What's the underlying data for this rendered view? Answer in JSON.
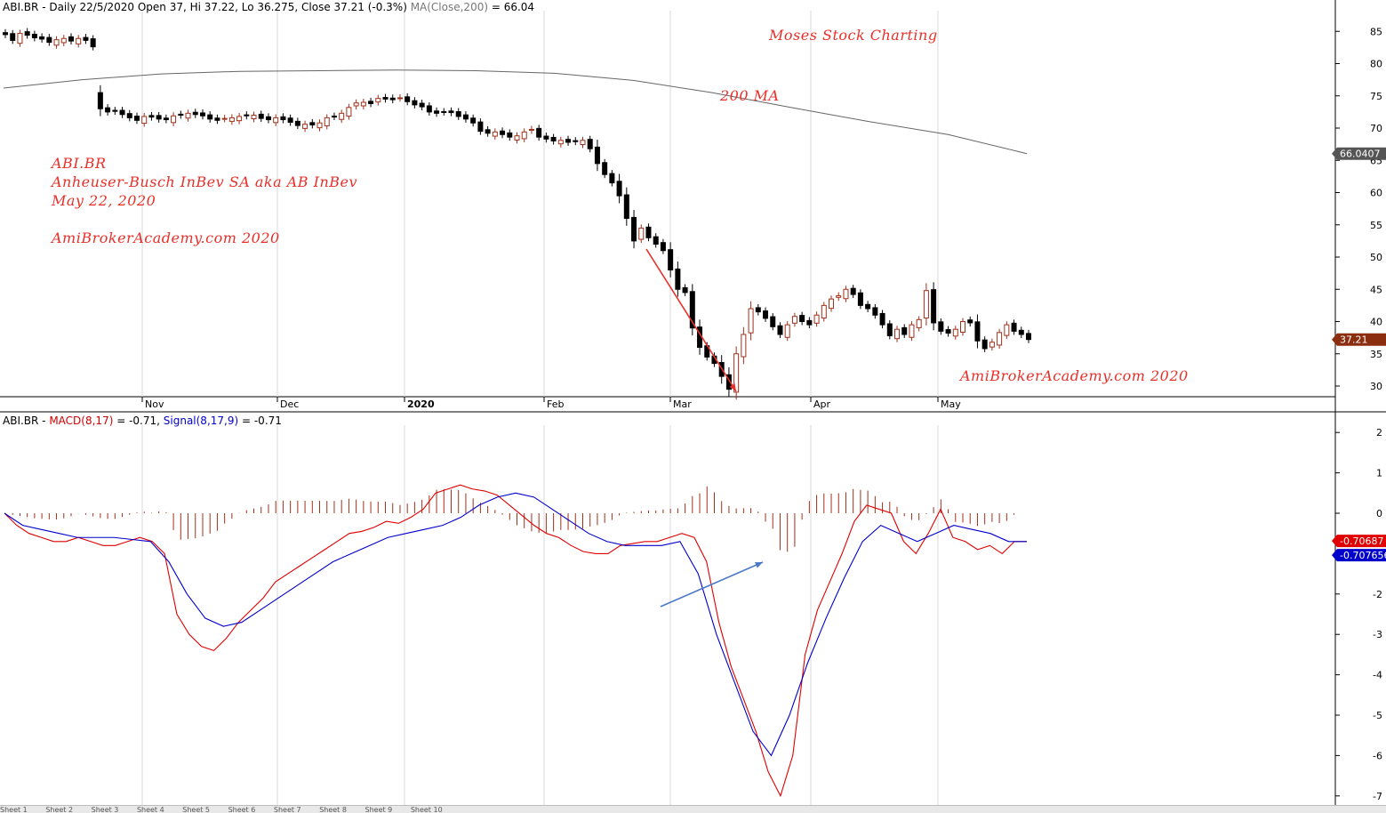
{
  "header": {
    "ticker": "ABI.BR",
    "ohlc": " - Daily 22/5/2020 Open 37, Hi 37.22, Lo 36.275, Close 37.21 (-0.3%) ",
    "ma_label": "MA(Close,200)",
    "ma_value": " = 66.04"
  },
  "macd_header": {
    "ticker": "ABI.BR - ",
    "macd_label": "MACD(8,17)",
    "macd_value": " = -0.71, ",
    "signal_label": "Signal(8,17,9)",
    "signal_value": " = -0.71"
  },
  "annotations": {
    "moses": "Moses Stock Charting",
    "ma200": "200 MA",
    "name1": "ABI.BR",
    "name2": "Anheuser-Busch InBev SA aka AB InBev",
    "date": "May 22, 2020",
    "site1": "AmiBrokerAcademy.com  2020",
    "site2": "AmiBrokerAcademy.com  2020"
  },
  "tabs": [
    "Sheet 1",
    "Sheet 2",
    "Sheet 3",
    "Sheet 4",
    "Sheet 5",
    "Sheet 6",
    "Sheet 7",
    "Sheet 8",
    "Sheet 9",
    "Sheet 10"
  ],
  "colors": {
    "macd": "#e00000",
    "signal": "#0000cc",
    "histogram": "#a0301a",
    "ma": "#666666",
    "arrow_price": "#e8302a",
    "arrow_macd": "#4a78c8",
    "last_price_bg": "#8b2e10"
  },
  "chart_data": [
    {
      "type": "candlestick",
      "title": "ABI.BR Daily",
      "ylim": [
        27,
        88
      ],
      "yticks": [
        30,
        35,
        40,
        45,
        50,
        55,
        60,
        65,
        70,
        75,
        80,
        85
      ],
      "xlabels": [
        "Nov",
        "Dec",
        "2020",
        "Feb",
        "Mar",
        "Apr",
        "May"
      ],
      "last_price_label": "37.21",
      "ma_label_box": "66.0407",
      "closes": [
        84.5,
        83.6,
        84.7,
        84.4,
        84.0,
        83.8,
        83.3,
        83.7,
        83.9,
        83.5,
        83.9,
        83.6,
        82.6,
        73.0,
        72.5,
        72.6,
        72.1,
        71.6,
        71.2,
        71.8,
        71.7,
        71.4,
        71.3,
        71.9,
        72.0,
        72.3,
        72.1,
        71.9,
        71.4,
        71.2,
        71.5,
        71.6,
        71.8,
        71.9,
        72.0,
        71.5,
        71.3,
        71.6,
        71.3,
        70.9,
        70.4,
        70.6,
        70.5,
        70.8,
        71.6,
        71.8,
        72.3,
        73.2,
        73.9,
        74.0,
        73.8,
        74.6,
        74.5,
        74.4,
        74.7,
        74.1,
        73.6,
        73.3,
        72.5,
        72.3,
        72.5,
        72.4,
        71.8,
        71.4,
        70.8,
        69.5,
        69.2,
        69.4,
        69.0,
        68.6,
        68.8,
        69.4,
        69.8,
        68.6,
        68.3,
        68.0,
        68.1,
        67.8,
        67.9,
        68.1,
        66.8,
        64.5,
        62.8,
        61.5,
        59.5,
        56.0,
        52.5,
        54.5,
        53.0,
        52.0,
        51.0,
        48.0,
        45.0,
        44.5,
        39.0,
        36.0,
        34.5,
        33.5,
        31.5,
        29.5,
        35.0,
        38.0,
        42.0,
        41.5,
        40.5,
        39.2,
        38.0,
        39.5,
        40.8,
        40.0,
        39.5,
        41.0,
        42.5,
        43.5,
        44.0,
        45.0,
        44.2,
        42.5,
        42.0,
        41.0,
        39.5,
        37.8,
        38.8,
        38.0,
        39.5,
        40.3,
        44.8,
        39.8,
        38.5,
        38.2,
        38.8,
        40.0,
        39.8,
        37.0,
        35.8,
        36.8,
        38.3,
        39.5,
        38.5,
        38.0,
        37.21
      ],
      "ma200": [
        76.2,
        77.5,
        78.4,
        78.8,
        78.9,
        79.0,
        78.9,
        78.5,
        77.4,
        75.5,
        73.2,
        71.0,
        69.0,
        66.04
      ]
    },
    {
      "type": "line",
      "title": "MACD(8,17) / Signal(8,17,9)",
      "ylim": [
        -7.2,
        2.4
      ],
      "yticks": [
        2,
        1,
        0,
        -1,
        -2,
        -3,
        -4,
        -5,
        -6,
        -7
      ],
      "macd_label_box": "-0.70687",
      "signal_label_box": "-0.707656",
      "series": [
        {
          "name": "MACD(8,17)",
          "values": [
            0,
            -0.3,
            -0.5,
            -0.6,
            -0.7,
            -0.7,
            -0.6,
            -0.7,
            -0.8,
            -0.8,
            -0.7,
            -0.6,
            -0.7,
            -1.0,
            -2.5,
            -3.0,
            -3.3,
            -3.4,
            -3.1,
            -2.7,
            -2.4,
            -2.1,
            -1.7,
            -1.5,
            -1.3,
            -1.1,
            -0.9,
            -0.7,
            -0.5,
            -0.45,
            -0.35,
            -0.2,
            -0.25,
            -0.1,
            0.1,
            0.5,
            0.6,
            0.7,
            0.6,
            0.55,
            0.45,
            0.2,
            -0.05,
            -0.3,
            -0.5,
            -0.6,
            -0.8,
            -0.95,
            -1.0,
            -1.0,
            -0.8,
            -0.75,
            -0.7,
            -0.7,
            -0.6,
            -0.5,
            -0.6,
            -1.2,
            -2.7,
            -3.8,
            -4.6,
            -5.4,
            -6.4,
            -7.0,
            -6.0,
            -3.5,
            -2.4,
            -1.7,
            -1.0,
            -0.2,
            0.2,
            0.1,
            0.0,
            -0.7,
            -1.0,
            -0.5,
            0.1,
            -0.6,
            -0.7,
            -0.9,
            -0.8,
            -1.0,
            -0.7,
            -0.7
          ]
        },
        {
          "name": "Signal(8,17,9)",
          "values": [
            0,
            -0.3,
            -0.4,
            -0.5,
            -0.6,
            -0.6,
            -0.6,
            -0.65,
            -0.7,
            -1.2,
            -2.0,
            -2.6,
            -2.8,
            -2.7,
            -2.4,
            -2.1,
            -1.8,
            -1.5,
            -1.2,
            -1.0,
            -0.8,
            -0.6,
            -0.5,
            -0.4,
            -0.3,
            -0.1,
            0.2,
            0.4,
            0.5,
            0.4,
            0.1,
            -0.2,
            -0.5,
            -0.7,
            -0.8,
            -0.8,
            -0.8,
            -0.7,
            -1.5,
            -3.0,
            -4.2,
            -5.4,
            -6.0,
            -5.0,
            -3.7,
            -2.6,
            -1.6,
            -0.7,
            -0.3,
            -0.5,
            -0.7,
            -0.5,
            -0.3,
            -0.4,
            -0.5,
            -0.7,
            -0.7
          ]
        }
      ]
    }
  ]
}
